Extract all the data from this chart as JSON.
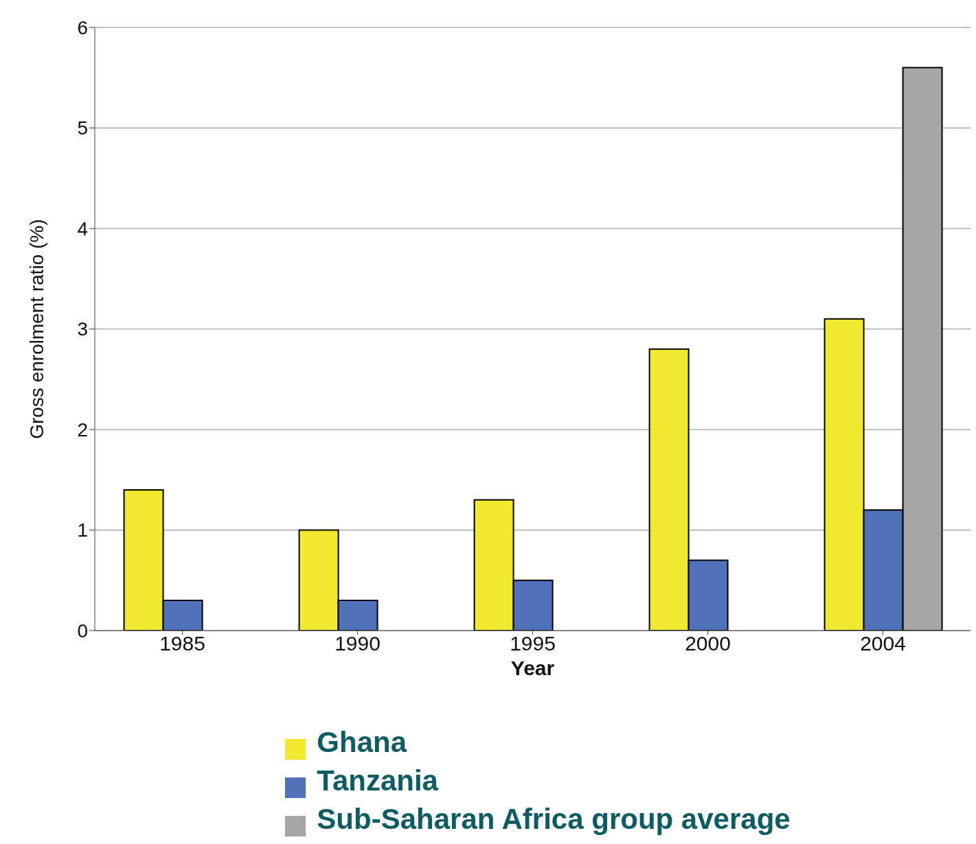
{
  "chart_data": {
    "type": "bar",
    "xlabel": "Year",
    "ylabel": "Gross enrolment ratio (%)",
    "categories": [
      "1985",
      "1990",
      "1995",
      "2000",
      "2004"
    ],
    "series": [
      {
        "name": "Ghana",
        "color": "#f0e92e",
        "values": [
          1.4,
          1.0,
          1.3,
          2.8,
          3.1
        ]
      },
      {
        "name": "Tanzania",
        "color": "#4f72b8",
        "values": [
          0.3,
          0.3,
          0.5,
          0.7,
          1.2
        ]
      },
      {
        "name": "Sub-Saharan Africa group average",
        "color": "#a6a6a6",
        "values": [
          null,
          null,
          null,
          null,
          5.6
        ]
      }
    ],
    "ylim": [
      0,
      6
    ],
    "yticks": [
      0,
      1,
      2,
      3,
      4,
      5,
      6
    ],
    "grid": "y",
    "legend": "bottom left"
  }
}
